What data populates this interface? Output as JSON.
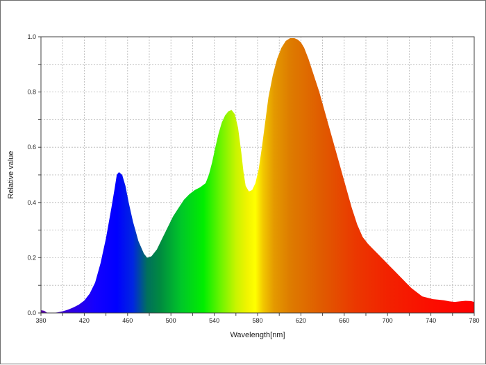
{
  "chart_data": {
    "type": "area",
    "title": "",
    "xlabel": "Wavelength[nm]",
    "ylabel": "Relative value",
    "xlim": [
      380,
      780
    ],
    "ylim": [
      0,
      1.0
    ],
    "x_ticks": [
      380,
      420,
      460,
      500,
      540,
      580,
      620,
      660,
      700,
      740,
      780
    ],
    "y_ticks": [
      0.0,
      0.2,
      0.4,
      0.6,
      0.8,
      1.0
    ],
    "y_tick_labels": [
      "0.0",
      "0.2",
      "0.4",
      "0.6",
      "0.8",
      "1.0"
    ],
    "grid": true,
    "fill": "spectral-color-gradient",
    "series": [
      {
        "x": [
          380,
          383,
          386,
          390,
          395,
          400,
          405,
          410,
          415,
          420,
          425,
          430,
          435,
          440,
          445,
          448,
          450,
          452,
          455,
          458,
          461,
          465,
          470,
          475,
          478,
          482,
          487,
          492,
          497,
          502,
          507,
          512,
          517,
          522,
          527,
          532,
          535,
          538,
          541,
          544,
          547,
          550,
          553,
          556,
          559,
          562,
          565,
          567,
          569,
          572,
          575,
          578,
          581,
          584,
          587,
          590,
          594,
          598,
          602,
          606,
          610,
          614,
          617,
          620,
          623,
          627,
          632,
          637,
          642,
          647,
          652,
          657,
          662,
          667,
          672,
          677,
          682,
          687,
          692,
          697,
          702,
          707,
          712,
          717,
          722,
          727,
          732,
          737,
          742,
          747,
          752,
          757,
          762,
          767,
          772,
          777,
          780
        ],
        "y": [
          0.01,
          0.008,
          0.0,
          0.0,
          0.002,
          0.006,
          0.012,
          0.02,
          0.03,
          0.045,
          0.07,
          0.11,
          0.18,
          0.27,
          0.38,
          0.45,
          0.5,
          0.51,
          0.5,
          0.46,
          0.4,
          0.33,
          0.26,
          0.215,
          0.2,
          0.205,
          0.23,
          0.27,
          0.31,
          0.35,
          0.38,
          0.41,
          0.43,
          0.445,
          0.455,
          0.47,
          0.5,
          0.545,
          0.6,
          0.65,
          0.69,
          0.715,
          0.73,
          0.735,
          0.72,
          0.67,
          0.58,
          0.51,
          0.46,
          0.44,
          0.445,
          0.47,
          0.52,
          0.6,
          0.69,
          0.78,
          0.86,
          0.92,
          0.96,
          0.985,
          0.995,
          0.995,
          0.99,
          0.98,
          0.96,
          0.92,
          0.86,
          0.8,
          0.73,
          0.66,
          0.59,
          0.52,
          0.45,
          0.38,
          0.32,
          0.275,
          0.25,
          0.23,
          0.21,
          0.19,
          0.17,
          0.15,
          0.13,
          0.11,
          0.09,
          0.075,
          0.06,
          0.055,
          0.05,
          0.048,
          0.046,
          0.042,
          0.04,
          0.042,
          0.044,
          0.043,
          0.04
        ]
      }
    ]
  }
}
